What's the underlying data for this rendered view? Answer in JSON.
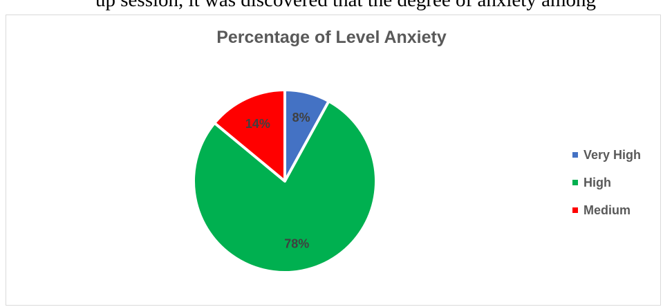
{
  "header_text": "up session, it was discovered that the degree of anxiety among",
  "chart_data": {
    "type": "pie",
    "title": "Percentage of Level Anxiety",
    "slices": [
      {
        "name": "Very High",
        "value": 8,
        "label": "8%",
        "color": "#4472c4"
      },
      {
        "name": "High",
        "value": 78,
        "label": "78%",
        "color": "#00b050"
      },
      {
        "name": "Medium",
        "value": 14,
        "label": "14%",
        "color": "#ff0000"
      }
    ],
    "legend_position": "right"
  }
}
